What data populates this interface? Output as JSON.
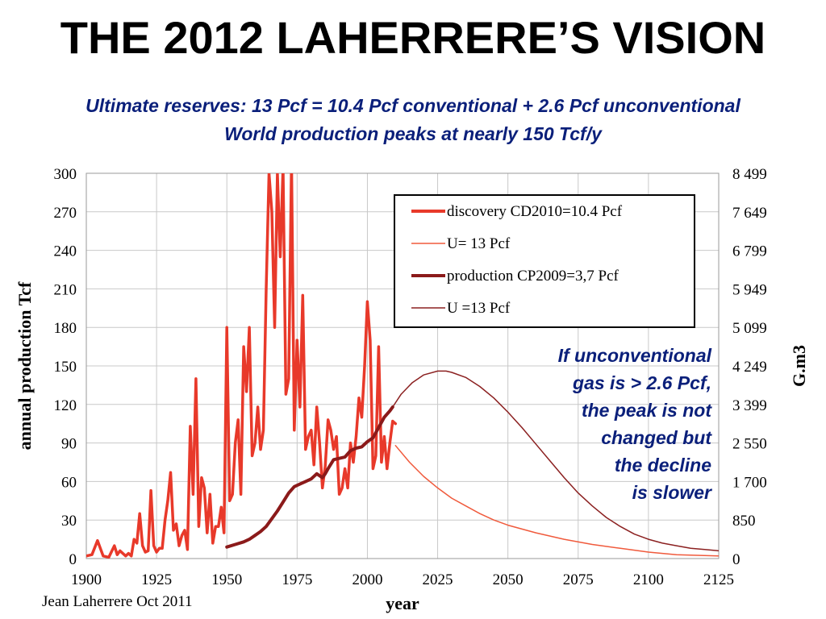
{
  "page": {
    "title": "THE 2012 LAHERRERE’S VISION",
    "subtitle_line1": "Ultimate reserves: 13 Pcf = 10.4 Pcf conventional + 2.6 Pcf unconventional",
    "subtitle_line2": "World production peaks at nearly 150 Tcf/y",
    "annotation_lines": [
      "If unconventional",
      "gas is > 2.6 Pcf,",
      "the peak is not",
      "changed but",
      "the decline",
      "is slower"
    ],
    "credit": "Jean Laherrere Oct 2011"
  },
  "colors": {
    "title": "#000000",
    "subtitle": "#0a1f7a",
    "discovery": "#e8392a",
    "u_discovery": "#f05a3c",
    "production": "#8b1a1a",
    "u_production": "#8b2020",
    "grid": "#c8c8c8"
  },
  "chart_data": {
    "type": "line",
    "xlabel": "year",
    "ylabel": "annual production Tcf",
    "y2label": "G.m3",
    "xlim": [
      1900,
      2125
    ],
    "ylim": [
      0,
      300
    ],
    "grid": true,
    "legend_position": "top-right",
    "x_ticks": [
      "1900",
      "1925",
      "1950",
      "1975",
      "2000",
      "2025",
      "2050",
      "2075",
      "2100",
      "2125"
    ],
    "y_ticks": [
      "0",
      "30",
      "60",
      "90",
      "120",
      "150",
      "180",
      "210",
      "240",
      "270",
      "300"
    ],
    "y2_ticks": [
      "0",
      "850",
      "1 700",
      "2 550",
      "3 399",
      "4 249",
      "5 099",
      "5 949",
      "6 799",
      "7 649",
      "8 499"
    ],
    "legend": [
      {
        "label": "discovery CD2010=10.4 Pcf",
        "color": "#e8392a",
        "width": 4
      },
      {
        "label": "U= 13 Pcf",
        "color": "#f05a3c",
        "width": 1.5
      },
      {
        "label": "production CP2009=3,7 Pcf",
        "color": "#8b1a1a",
        "width": 4
      },
      {
        "label": "U =13 Pcf",
        "color": "#8b2020",
        "width": 1.5
      }
    ],
    "series": [
      {
        "name": "discovery CD2010=10.4 Pcf",
        "color": "#e8392a",
        "width": 3.5,
        "x": [
          1900,
          1902,
          1904,
          1905,
          1906,
          1908,
          1910,
          1911,
          1912,
          1914,
          1915,
          1916,
          1917,
          1918,
          1919,
          1920,
          1921,
          1922,
          1923,
          1924,
          1925,
          1926,
          1927,
          1928,
          1929,
          1930,
          1931,
          1932,
          1933,
          1934,
          1935,
          1936,
          1937,
          1938,
          1939,
          1940,
          1941,
          1942,
          1943,
          1944,
          1945,
          1946,
          1947,
          1948,
          1949,
          1950,
          1951,
          1952,
          1953,
          1954,
          1955,
          1956,
          1957,
          1958,
          1959,
          1960,
          1961,
          1962,
          1963,
          1964,
          1965,
          1966,
          1967,
          1968,
          1969,
          1970,
          1971,
          1972,
          1973,
          1974,
          1975,
          1976,
          1977,
          1978,
          1979,
          1980,
          1981,
          1982,
          1983,
          1984,
          1985,
          1986,
          1987,
          1988,
          1989,
          1990,
          1991,
          1992,
          1993,
          1994,
          1995,
          1996,
          1997,
          1998,
          1999,
          2000,
          2001,
          2002,
          2003,
          2004,
          2005,
          2006,
          2007,
          2008,
          2009,
          2010
        ],
        "y": [
          2,
          3,
          14,
          8,
          2,
          1,
          10,
          3,
          6,
          2,
          4,
          2,
          15,
          12,
          35,
          10,
          5,
          6,
          53,
          10,
          5,
          8,
          8,
          30,
          45,
          67,
          22,
          27,
          10,
          18,
          22,
          7,
          103,
          50,
          140,
          25,
          63,
          55,
          20,
          50,
          12,
          25,
          25,
          40,
          20,
          180,
          45,
          50,
          90,
          108,
          50,
          165,
          130,
          180,
          80,
          90,
          118,
          85,
          100,
          210,
          300,
          270,
          180,
          300,
          235,
          305,
          128,
          140,
          310,
          100,
          170,
          118,
          205,
          85,
          95,
          100,
          73,
          118,
          90,
          55,
          72,
          108,
          100,
          85,
          95,
          50,
          55,
          70,
          55,
          90,
          75,
          95,
          125,
          110,
          150,
          200,
          170,
          70,
          80,
          165,
          75,
          95,
          70,
          90,
          107,
          105
        ]
      },
      {
        "name": "U= 13 Pcf",
        "color": "#f05a3c",
        "width": 1.5,
        "x": [
          2010,
          2015,
          2020,
          2025,
          2030,
          2035,
          2040,
          2045,
          2050,
          2060,
          2070,
          2080,
          2090,
          2100,
          2110,
          2125
        ],
        "y": [
          88,
          75,
          64,
          55,
          47,
          41,
          35,
          30,
          26,
          20,
          15,
          11,
          8,
          5,
          3,
          2
        ]
      },
      {
        "name": "production CP2009=3,7 Pcf",
        "color": "#8b1a1a",
        "width": 4,
        "x": [
          1950,
          1953,
          1956,
          1958,
          1960,
          1962,
          1964,
          1966,
          1968,
          1970,
          1972,
          1974,
          1976,
          1978,
          1980,
          1982,
          1984,
          1985,
          1986,
          1988,
          1990,
          1992,
          1994,
          1995,
          1996,
          1998,
          2000,
          2002,
          2004,
          2006,
          2008,
          2009
        ],
        "y": [
          9,
          11,
          13,
          15,
          18,
          21,
          25,
          31,
          37,
          44,
          51,
          56,
          58,
          60,
          62,
          66,
          63,
          66,
          70,
          77,
          78,
          79,
          84,
          85,
          86,
          87,
          91,
          94,
          102,
          110,
          115,
          118
        ]
      },
      {
        "name": "U =13 Pcf",
        "color": "#8b2020",
        "width": 1.5,
        "x": [
          2009,
          2012,
          2016,
          2020,
          2025,
          2028,
          2030,
          2035,
          2040,
          2045,
          2050,
          2055,
          2060,
          2065,
          2070,
          2075,
          2080,
          2085,
          2090,
          2095,
          2100,
          2105,
          2110,
          2115,
          2120,
          2125
        ],
        "y": [
          118,
          128,
          137,
          143,
          146,
          146,
          145,
          141,
          134,
          125,
          114,
          102,
          89,
          76,
          63,
          51,
          41,
          32,
          25,
          19,
          15,
          12,
          10,
          8,
          7,
          6
        ]
      }
    ]
  }
}
